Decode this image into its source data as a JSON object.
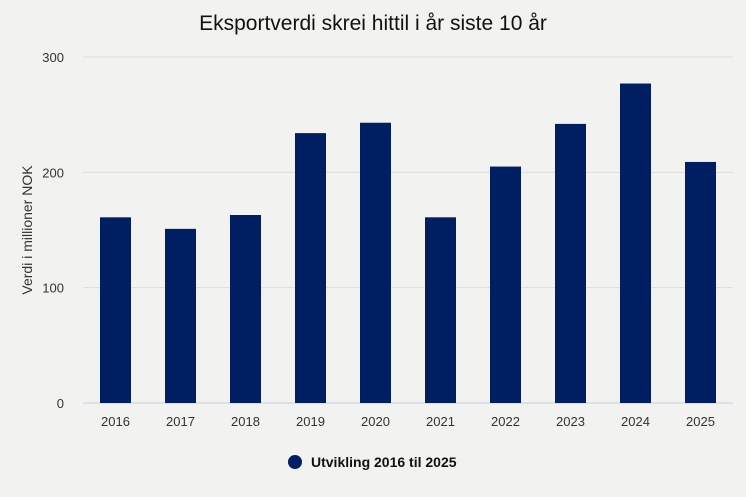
{
  "colors": {
    "background": "#f2f2f0",
    "bar": "#001f63",
    "grid": "#dcdcdc",
    "axis_text": "#333333",
    "title_text": "#111111"
  },
  "legend_marker": "circle",
  "chart_data": {
    "type": "bar",
    "title": "Eksportverdi skrei hittil i år siste 10 år",
    "xlabel": "",
    "ylabel": "Verdi i millioner NOK",
    "categories": [
      "2016",
      "2017",
      "2018",
      "2019",
      "2020",
      "2021",
      "2022",
      "2023",
      "2024",
      "2025"
    ],
    "series": [
      {
        "name": "Utvikling 2016 til 2025",
        "values": [
          161,
          151,
          163,
          234,
          243,
          161,
          205,
          242,
          277,
          209
        ]
      }
    ],
    "ylim": [
      0,
      300
    ],
    "yticks": [
      "0",
      "100",
      "200",
      "300"
    ],
    "grid": true,
    "legend_position": "bottom-center"
  }
}
